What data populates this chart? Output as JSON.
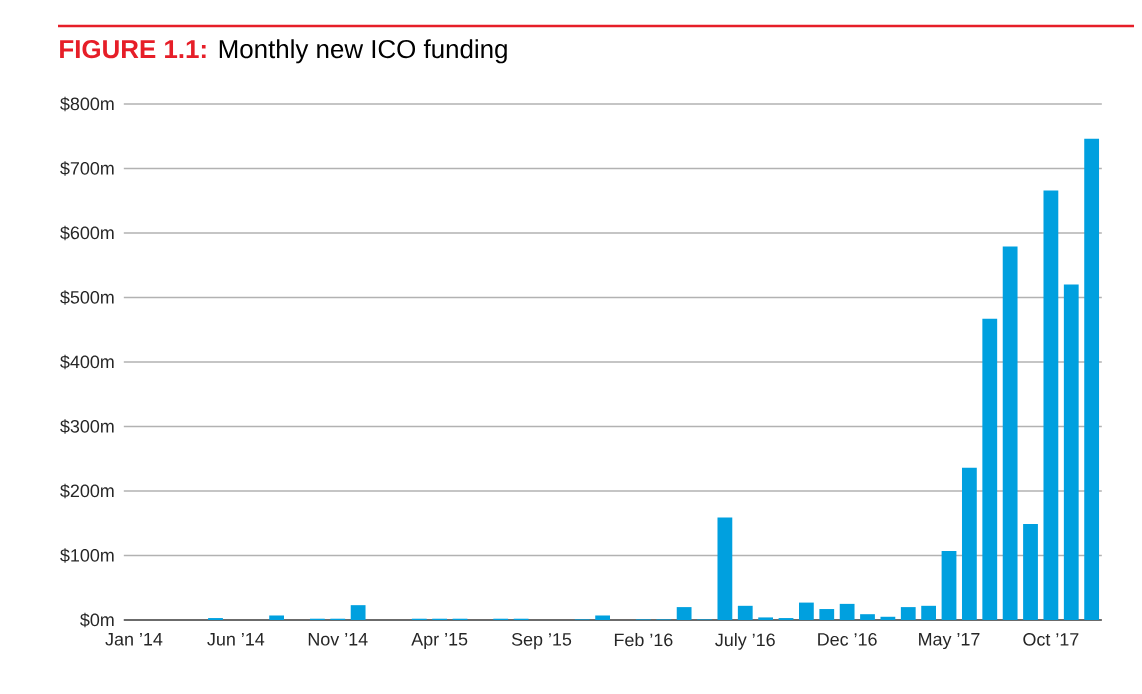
{
  "chart_data": {
    "type": "bar",
    "title": "**FIGURE 1.1:** Monthly new ICO funding",
    "categories": [
      "Jan ’14",
      null,
      null,
      null,
      null,
      "Jun ’14",
      null,
      null,
      null,
      null,
      "Nov ’14",
      null,
      null,
      null,
      null,
      "Apr ’15",
      null,
      null,
      null,
      null,
      "Sep ’15",
      null,
      null,
      null,
      null,
      "Feb ’16",
      null,
      null,
      null,
      null,
      "July ’16",
      null,
      null,
      null,
      null,
      "Dec ’16",
      null,
      null,
      null,
      null,
      "May ’17",
      null,
      null,
      null,
      null,
      "Oct ’17",
      null,
      null
    ],
    "values": [
      0,
      0,
      0,
      0,
      3,
      0,
      0,
      7,
      0,
      2,
      2,
      23,
      0,
      0,
      2,
      2,
      2,
      0,
      2,
      2,
      0,
      0,
      1,
      7,
      0,
      1,
      1,
      20,
      1,
      159,
      22,
      4,
      3,
      27,
      17,
      25,
      9,
      5,
      20,
      22,
      107,
      236,
      467,
      579,
      149,
      666,
      520,
      746
    ],
    "color": "#00a0df",
    "ylim": [
      0,
      800
    ],
    "yticks": [
      {
        "value": 0,
        "label": "$0m"
      },
      {
        "value": 100,
        "label": "$100m"
      },
      {
        "value": 200,
        "label": "$200m"
      },
      {
        "value": 300,
        "label": "$300m"
      },
      {
        "value": 400,
        "label": "$400m"
      },
      {
        "value": 500,
        "label": "$500m"
      },
      {
        "value": 600,
        "label": "$600m"
      },
      {
        "value": 700,
        "label": "$700m"
      },
      {
        "value": 800,
        "label": "$800m"
      }
    ],
    "grid": "y"
  }
}
